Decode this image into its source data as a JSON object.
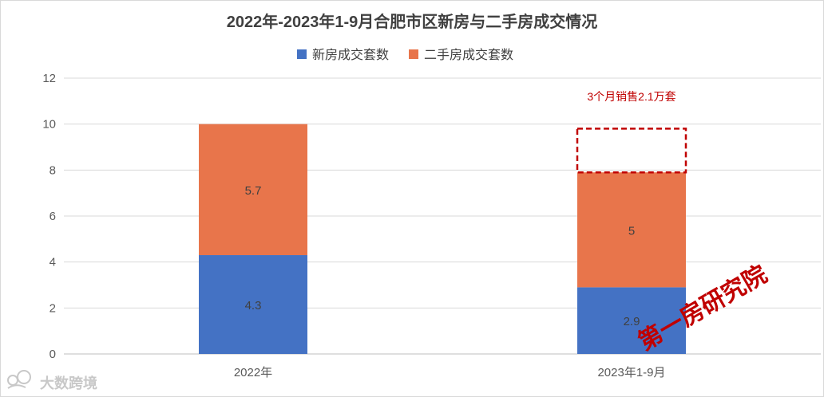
{
  "chart_data": {
    "type": "bar",
    "stacked": true,
    "title": "2022年-2023年1-9月合肥市区新房与二手房成交情况",
    "categories": [
      "2022年",
      "2023年1-9月"
    ],
    "series": [
      {
        "name": "新房成交套数",
        "values": [
          4.3,
          2.9
        ],
        "labels": [
          "4.3",
          "2.9"
        ],
        "color": "#4472c4"
      },
      {
        "name": "二手房成交套数",
        "values": [
          5.7,
          5
        ],
        "labels": [
          "5.7",
          "5"
        ],
        "color": "#e8754b"
      }
    ],
    "ylim": [
      0,
      12
    ],
    "yticks": [
      0,
      2,
      4,
      6,
      8,
      10,
      12
    ],
    "ytick_labels": [
      "0",
      "2",
      "4",
      "6",
      "8",
      "10",
      "12"
    ],
    "grid": true,
    "legend_position": "top",
    "annotation": {
      "text": "3个月销售2.1万套",
      "color": "#c00000",
      "category_index": 1,
      "dashed_box_range": [
        7.9,
        9.8
      ]
    }
  },
  "watermark": {
    "text": "第一房研究院",
    "color": "#c00000"
  },
  "logo": {
    "text": "大数跨境"
  }
}
